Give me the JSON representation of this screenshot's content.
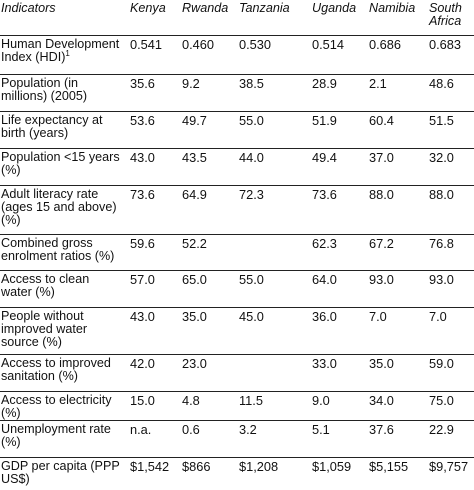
{
  "table": {
    "headers": [
      "Indicators",
      "Kenya",
      "Rwanda",
      "Tanzania",
      "Uganda",
      "Namibia",
      "South Africa"
    ],
    "rows": [
      {
        "label": "Human Development Index (HDI)",
        "note": "1",
        "values": [
          "0.541",
          "0.460",
          "0.530",
          "0.514",
          "0.686",
          "0.683"
        ]
      },
      {
        "label": "Population (in millions) (2005)",
        "values": [
          "35.6",
          "9.2",
          "38.5",
          "28.9",
          "2.1",
          "48.6"
        ]
      },
      {
        "label": "Life expectancy at birth (years)",
        "values": [
          "53.6",
          "49.7",
          "55.0",
          "51.9",
          "60.4",
          "51.5"
        ]
      },
      {
        "label": "Population <15 years (%)",
        "values": [
          "43.0",
          "43.5",
          "44.0",
          "49.4",
          "37.0",
          "32.0"
        ]
      },
      {
        "label": "Adult literacy rate (ages 15 and above) (%)",
        "values": [
          "73.6",
          "64.9",
          "72.3",
          "73.6",
          "88.0",
          "88.0"
        ]
      },
      {
        "label": "Combined gross enrolment ratios (%)",
        "values": [
          "59.6",
          "52.2",
          "",
          "62.3",
          "67.2",
          "76.8"
        ]
      },
      {
        "label": "Access to clean water (%)",
        "values": [
          "57.0",
          "65.0",
          "55.0",
          "64.0",
          "93.0",
          "93.0"
        ]
      },
      {
        "label": "People without improved water source (%)",
        "values": [
          "43.0",
          "35.0",
          "45.0",
          "36.0",
          "7.0",
          "7.0"
        ]
      },
      {
        "label": "Access to improved sanitation (%)",
        "values": [
          "42.0",
          "23.0",
          "",
          "33.0",
          "35.0",
          "59.0"
        ]
      },
      {
        "label": "Access to electricity (%)",
        "values": [
          "15.0",
          "4.8",
          "11.5",
          "9.0",
          "34.0",
          "75.0"
        ]
      },
      {
        "label": "Unemployment rate (%)",
        "values": [
          "n.a.",
          "0.6",
          "3.2",
          "5.1",
          "37.6",
          "22.9"
        ]
      },
      {
        "label": "GDP per capita (PPP US$)",
        "values": [
          "$1,542",
          "$866",
          "$1,208",
          "$1,059",
          "$5,155",
          "$9,757"
        ]
      }
    ]
  }
}
